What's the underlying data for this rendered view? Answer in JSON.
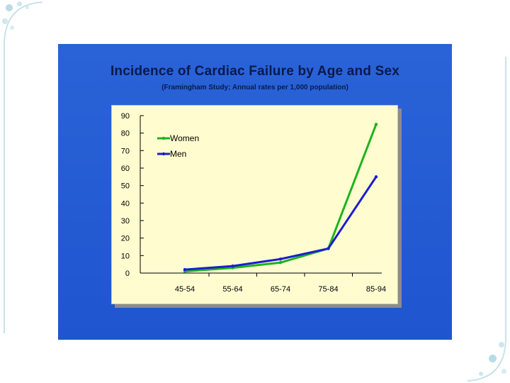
{
  "slide": {
    "title": "Incidence of Cardiac Failure by Age and Sex",
    "subtitle": "(Framingham Study; Annual rates per 1,000 population)",
    "colors": {
      "panel": "#1f55cf",
      "plot_bg": "#fffdd0",
      "women": "#1db31d",
      "men": "#1c1cd0",
      "text": "#0a1a4a"
    }
  },
  "chart_data": {
    "type": "line",
    "title": "Incidence of Cardiac Failure by Age and Sex",
    "subtitle": "(Framingham Study; Annual rates per 1,000 population)",
    "categories": [
      "45-54",
      "55-64",
      "65-74",
      "75-84",
      "85-94"
    ],
    "series": [
      {
        "name": "Women",
        "values": [
          1,
          3,
          6,
          14,
          85
        ],
        "color": "#1db31d"
      },
      {
        "name": "Men",
        "values": [
          2,
          4,
          8,
          14,
          55
        ],
        "color": "#1c1cd0"
      }
    ],
    "ylim": [
      0,
      90
    ],
    "yticks": [
      0,
      10,
      20,
      30,
      40,
      50,
      60,
      70,
      80,
      90
    ],
    "grid": false,
    "legend": "top-left"
  }
}
